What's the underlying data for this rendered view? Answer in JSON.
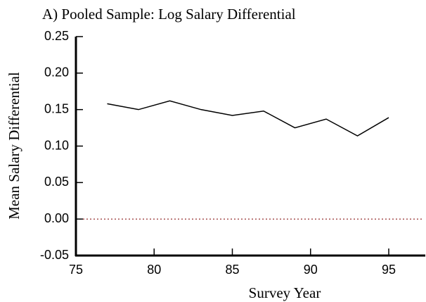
{
  "chart_data": {
    "type": "line",
    "title": "A) Pooled Sample:  Log Salary Differential",
    "x_label": "Survey Year",
    "y_label": "Mean Salary Differential",
    "x": [
      77,
      79,
      81,
      83,
      85,
      87,
      89,
      91,
      93,
      95
    ],
    "series": [
      {
        "color": "#000000",
        "values": [
          0.158,
          0.15,
          0.162,
          0.15,
          0.142,
          0.148,
          0.125,
          0.137,
          0.114,
          0.139
        ]
      }
    ],
    "xlim": [
      75,
      97
    ],
    "xticks": [
      75,
      80,
      85,
      90,
      95
    ],
    "ylim": [
      -0.05,
      0.25
    ],
    "yticks": [
      0.25,
      {
        "value": 0.2,
        "label": "0.20"
      },
      0.15,
      {
        "value": 0.1,
        "label": "0.10"
      },
      0.05,
      {
        "value": 0,
        "label": "0.00"
      },
      -0.05
    ],
    "reference_line": 0,
    "reference_color": "#8b1a1a"
  }
}
